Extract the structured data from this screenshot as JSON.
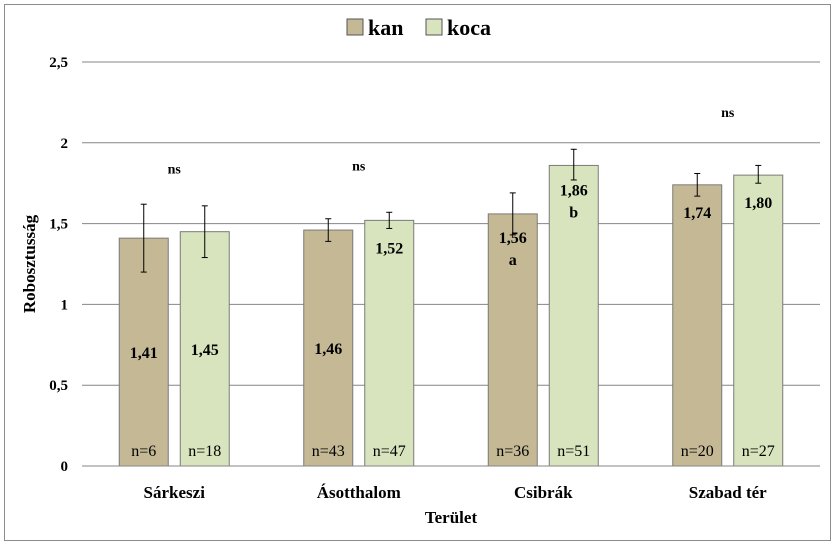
{
  "chart_data": {
    "type": "bar",
    "title": "",
    "xlabel": "Terület",
    "ylabel": "Robosztusság",
    "ylim": [
      0,
      2.5
    ],
    "yticks": [
      "0",
      "0,5",
      "1",
      "1,5",
      "2",
      "2,5"
    ],
    "ytick_values": [
      0,
      0.5,
      1,
      1.5,
      2,
      2.5
    ],
    "categories": [
      "Sárkeszi",
      "Ásotthalom",
      "Csibrák",
      "Szabad tér"
    ],
    "legend_position": "top-center",
    "series": [
      {
        "name": "kan",
        "color": "#c4b994",
        "values": [
          1.41,
          1.46,
          1.56,
          1.74
        ],
        "labels": [
          "1,41",
          "1,46",
          "1,56",
          "1,74"
        ],
        "err_low": [
          1.2,
          1.39,
          1.43,
          1.67
        ],
        "err_high": [
          1.62,
          1.53,
          1.69,
          1.81
        ],
        "n_labels": [
          "n=6",
          "n=43",
          "n=36",
          "n=20"
        ],
        "sig_labels": [
          "",
          "",
          "a",
          ""
        ]
      },
      {
        "name": "koca",
        "color": "#d7e4bd",
        "values": [
          1.45,
          1.52,
          1.86,
          1.8
        ],
        "labels": [
          "1,45",
          "1,52",
          "1,86",
          "1,80"
        ],
        "err_low": [
          1.29,
          1.47,
          1.77,
          1.75
        ],
        "err_high": [
          1.61,
          1.57,
          1.96,
          1.86
        ],
        "n_labels": [
          "n=18",
          "n=47",
          "n=51",
          "n=27"
        ],
        "sig_labels": [
          "",
          "",
          "b",
          ""
        ]
      }
    ],
    "group_annotations": [
      "ns",
      "ns",
      "",
      "ns"
    ],
    "group_annotation_values": [
      1.81,
      1.83,
      0,
      2.16
    ]
  }
}
